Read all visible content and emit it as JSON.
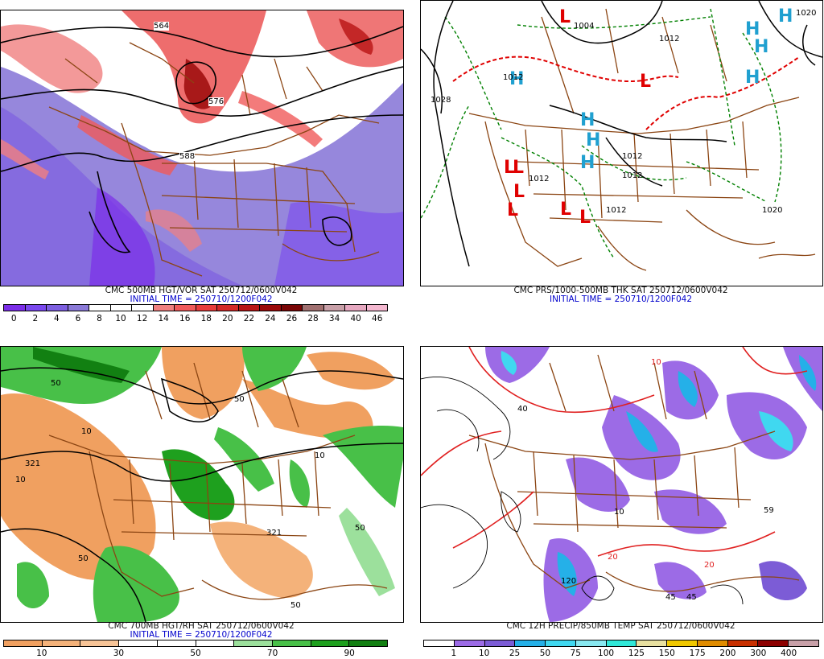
{
  "panels": {
    "p1": {
      "title": "CMC 500MB HGT/VOR SAT 250712/0600V042",
      "init": "INITIAL TIME = 250710/1200F042",
      "colorbar": {
        "colors": [
          "#7b2ee8",
          "#7a48ee",
          "#7d5fe0",
          "#8b7ad8",
          "#ffffff",
          "#ffffff",
          "#ffffff",
          "#f08080",
          "#f05a5a",
          "#e83c3c",
          "#d42828",
          "#b81414",
          "#9b0a0a",
          "#7a0606",
          "#a07070",
          "#c8a0a8",
          "#e6a8c0",
          "#f4b8d0"
        ],
        "labels": [
          "0",
          "2",
          "4",
          "6",
          "8",
          "10",
          "12",
          "14",
          "16",
          "18",
          "20",
          "22",
          "24",
          "26",
          "28",
          "34",
          "40",
          "46"
        ]
      },
      "contour_labels": [
        "564",
        "576",
        "588"
      ]
    },
    "p2": {
      "title": "CMC PRS/1000-500MB THK SAT 250712/0600V042",
      "init": "INITIAL TIME = 250710/1200F042",
      "pressure_labels": [
        "1004",
        "1012",
        "1028",
        "1020",
        "1012",
        "1012",
        "1012",
        "1012",
        "1012",
        "1020"
      ],
      "highs": [
        "H",
        "H",
        "H",
        "H",
        "H",
        "H",
        "H",
        "H"
      ],
      "lows": [
        "L",
        "L",
        "L",
        "L",
        "L",
        "L",
        "L",
        "L"
      ]
    },
    "p3": {
      "title": "CMC 700MB HGT/RH SAT 250712/0600V042",
      "init": "INITIAL TIME = 250710/1200F042",
      "colorbar": {
        "colors": [
          "#f0a060",
          "#f4b27a",
          "#f7c497",
          "#ffffff",
          "#ffffff",
          "#ffffff",
          "#9ce09c",
          "#48c048",
          "#1ea01e",
          "#128012"
        ],
        "labels": [
          "10",
          "30",
          "50",
          "70",
          "90"
        ]
      },
      "contour_labels": [
        "50",
        "10",
        "321",
        "50",
        "10",
        "50",
        "321",
        "50",
        "10",
        "50"
      ]
    },
    "p4": {
      "title": "CMC 12H PRECIP/850MB TEMP SAT 250712/0600V042",
      "colorbar": {
        "colors": [
          "#ffffff",
          "#9c6be6",
          "#7c5cd6",
          "#25b0e8",
          "#40d8f0",
          "#88e8f0",
          "#30e8d8",
          "#e8e0a0",
          "#f0c800",
          "#e08c00",
          "#c83000",
          "#8c0000",
          "#c8a0a8"
        ],
        "labels": [
          "1",
          "10",
          "25",
          "50",
          "75",
          "100",
          "125",
          "150",
          "175",
          "200",
          "300",
          "400"
        ]
      },
      "contour_labels": [
        "10",
        "20",
        "40",
        "45",
        "120",
        "10",
        "20",
        "45",
        "59"
      ]
    }
  },
  "colors": {
    "map_border": "#8b4513",
    "contour": "#000000",
    "thickness_red": "#e00000",
    "thickness_green": "#008000",
    "high_symbol": "#20a0d0",
    "low_symbol": "#e00000"
  }
}
